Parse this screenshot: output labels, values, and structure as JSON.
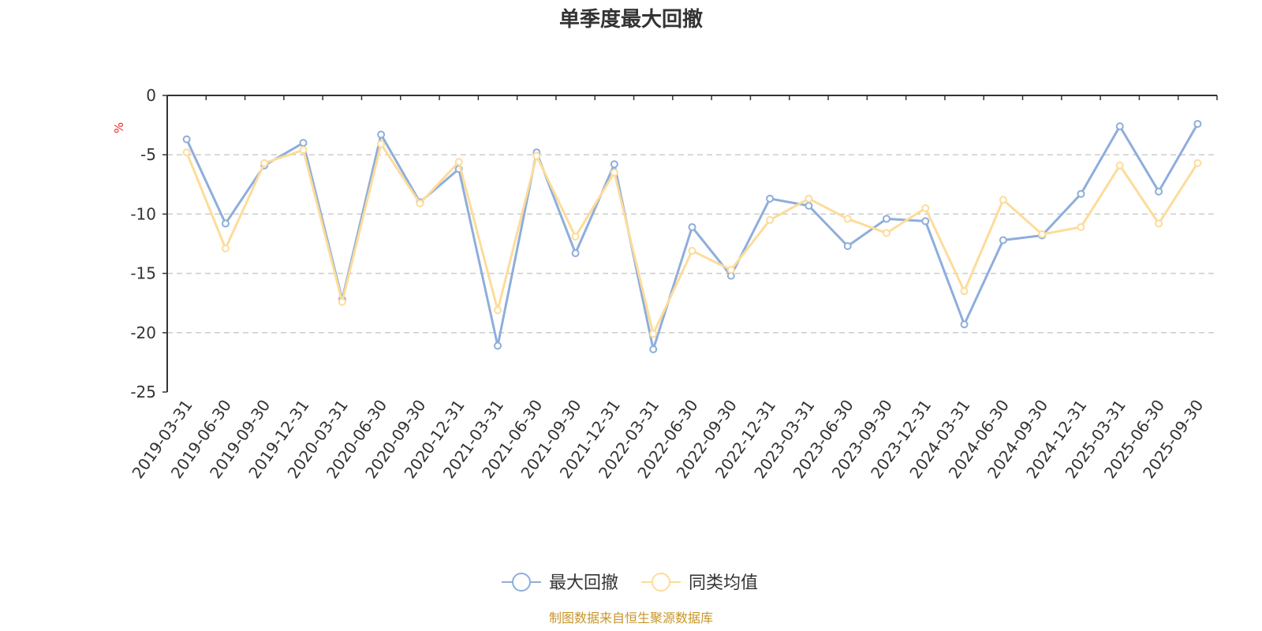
{
  "chart_data": {
    "type": "line",
    "title": "单季度最大回撤",
    "ylabel": "%",
    "ylim": [
      -25,
      0
    ],
    "yticks": [
      0,
      -5,
      -10,
      -15,
      -20,
      -25
    ],
    "grid": true,
    "legend_position": "bottom",
    "categories": [
      "2019-03-31",
      "2019-06-30",
      "2019-09-30",
      "2019-12-31",
      "2020-03-31",
      "2020-06-30",
      "2020-09-30",
      "2020-12-31",
      "2021-03-31",
      "2021-06-30",
      "2021-09-30",
      "2021-12-31",
      "2022-03-31",
      "2022-06-30",
      "2022-09-30",
      "2022-12-31",
      "2023-03-31",
      "2023-06-30",
      "2023-09-30",
      "2023-12-31",
      "2024-03-31",
      "2024-06-30",
      "2024-09-30",
      "2024-12-31",
      "2025-03-31",
      "2025-06-30",
      "2025-09-30"
    ],
    "series": [
      {
        "name": "最大回撤",
        "color": "#8eaedb",
        "values": [
          -3.7,
          -10.8,
          -5.9,
          -4.0,
          -17.2,
          -3.3,
          -9.0,
          -6.2,
          -21.1,
          -4.8,
          -13.3,
          -5.8,
          -21.4,
          -11.1,
          -15.2,
          -8.7,
          -9.3,
          -12.7,
          -10.4,
          -10.6,
          -19.3,
          -12.2,
          -11.8,
          -8.3,
          -2.6,
          -8.1,
          -2.4
        ]
      },
      {
        "name": "同类均值",
        "color": "#fddc9a",
        "values": [
          -4.8,
          -12.9,
          -5.7,
          -4.6,
          -17.4,
          -4.1,
          -9.1,
          -5.6,
          -18.1,
          -5.1,
          -11.9,
          -6.5,
          -20.1,
          -13.1,
          -14.7,
          -10.5,
          -8.7,
          -10.4,
          -11.6,
          -9.5,
          -16.5,
          -8.8,
          -11.7,
          -11.1,
          -5.9,
          -10.8,
          -5.7
        ]
      }
    ],
    "source": "制图数据来自恒生聚源数据库"
  }
}
